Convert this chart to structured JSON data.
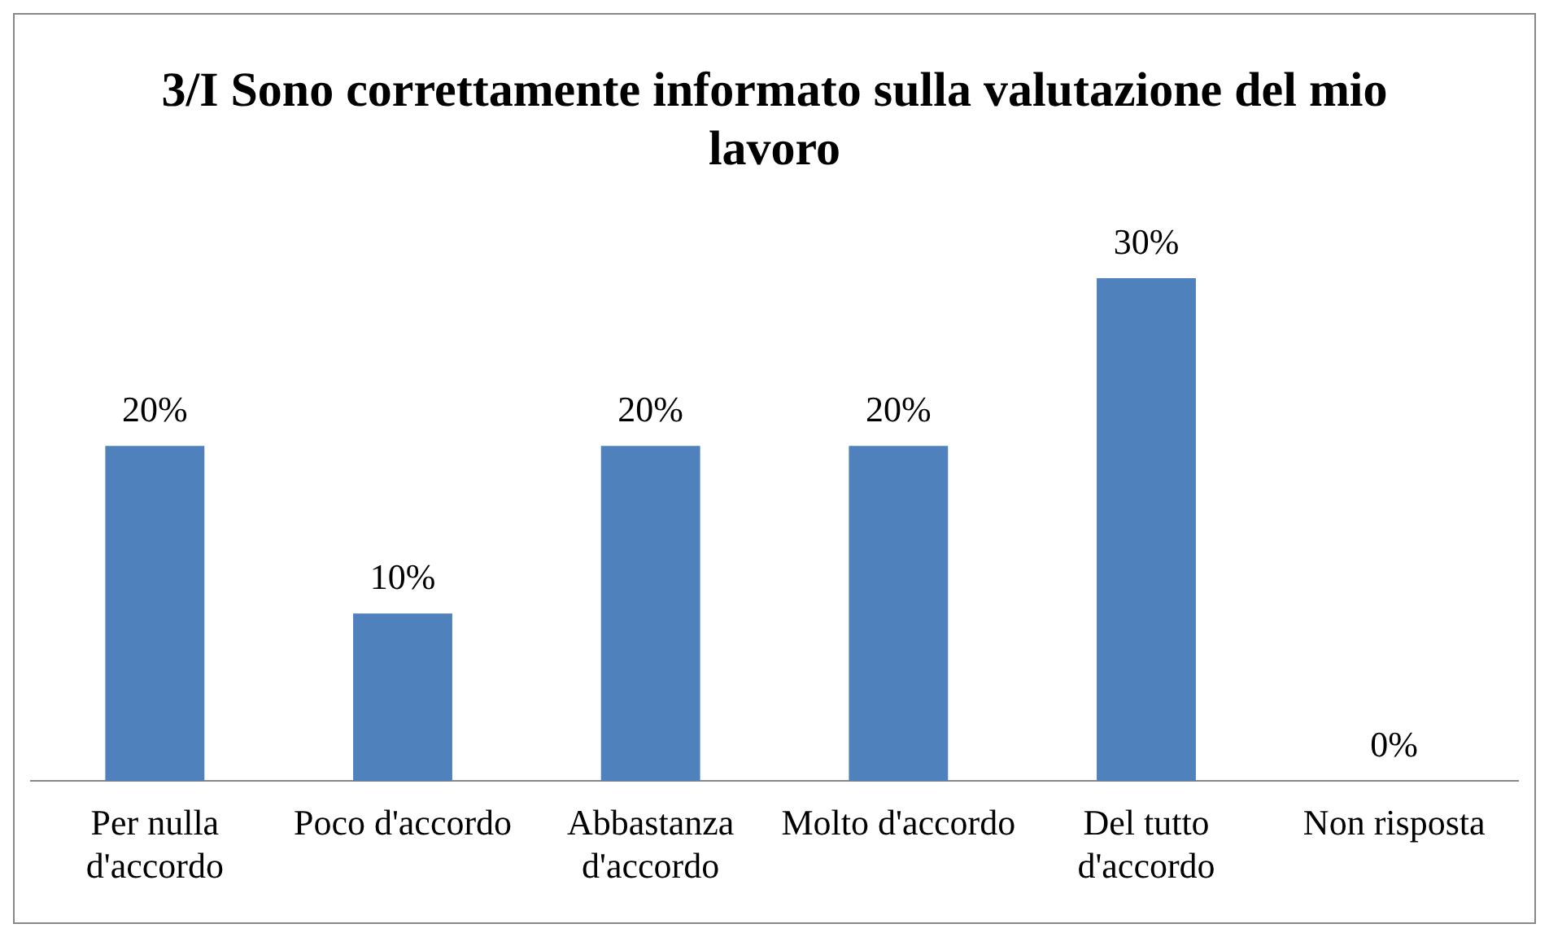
{
  "chart_data": {
    "type": "bar",
    "title": "3/I Sono correttamente informato sulla valutazione del mio lavoro",
    "categories": [
      "Per nulla d'accordo",
      "Poco d'accordo",
      "Abbastanza d'accordo",
      "Molto d'accordo",
      "Del tutto d'accordo",
      "Non risposta"
    ],
    "values": [
      20,
      10,
      20,
      20,
      30,
      0
    ],
    "value_labels": [
      "20%",
      "10%",
      "20%",
      "20%",
      "30%",
      "0%"
    ],
    "color": "#4f81bd",
    "grid": false,
    "legend": false
  }
}
